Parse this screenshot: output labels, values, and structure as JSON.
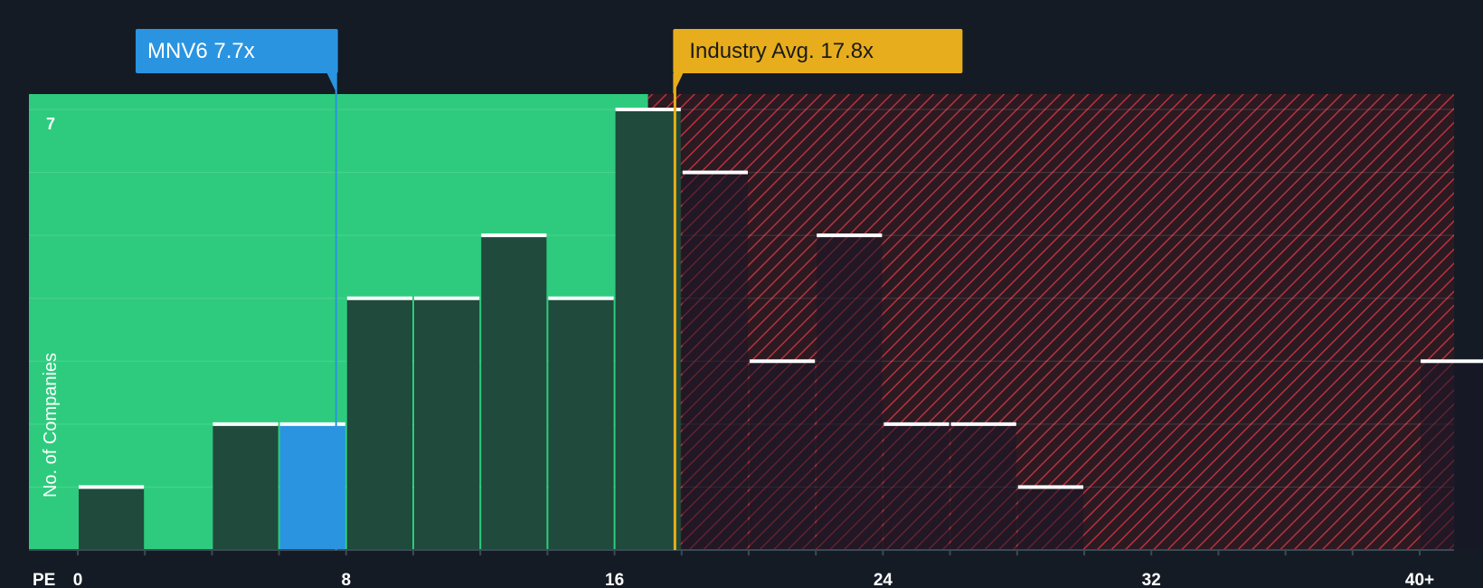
{
  "chart_data": {
    "type": "bar",
    "title": "",
    "xlabel": "PE",
    "ylabel": "No. of Companies",
    "x_ticks": [
      "0",
      "8",
      "16",
      "24",
      "32",
      "40+"
    ],
    "y_tick_labels": [
      "7"
    ],
    "ylim": [
      0,
      7.25
    ],
    "bin_width": 2,
    "bins": [
      {
        "start": 0,
        "count": 1
      },
      {
        "start": 2,
        "count": 0
      },
      {
        "start": 4,
        "count": 2
      },
      {
        "start": 6,
        "count": 2,
        "highlight": true
      },
      {
        "start": 8,
        "count": 4
      },
      {
        "start": 10,
        "count": 4
      },
      {
        "start": 12,
        "count": 5
      },
      {
        "start": 14,
        "count": 4
      },
      {
        "start": 16,
        "count": 7
      },
      {
        "start": 18,
        "count": 6
      },
      {
        "start": 20,
        "count": 3
      },
      {
        "start": 22,
        "count": 5
      },
      {
        "start": 24,
        "count": 2
      },
      {
        "start": 26,
        "count": 2
      },
      {
        "start": 28,
        "count": 1
      },
      {
        "start": 30,
        "count": 0
      },
      {
        "start": 32,
        "count": 0
      },
      {
        "start": 34,
        "count": 0
      },
      {
        "start": 36,
        "count": 0
      },
      {
        "start": 38,
        "count": 0
      },
      {
        "start": 40,
        "count": 3
      }
    ],
    "company": {
      "label": "MNV6 7.7x",
      "value": 7.7
    },
    "industry_avg": {
      "label": "Industry Avg. 17.8x",
      "value": 17.8
    },
    "undervalued_region_end": 17,
    "grid": true
  },
  "colors": {
    "background": "#151b24",
    "green_zone": "#2ecb7e",
    "red_zone": "#2b1a22",
    "hatch": "#b8323c",
    "bar": "#1f4a3c",
    "bar_highlight": "#2a94e0",
    "cap": "#ffffff",
    "company_marker": "#2a94e0",
    "industry_marker": "#e8ad1c",
    "axis_text": "#ffffff"
  }
}
